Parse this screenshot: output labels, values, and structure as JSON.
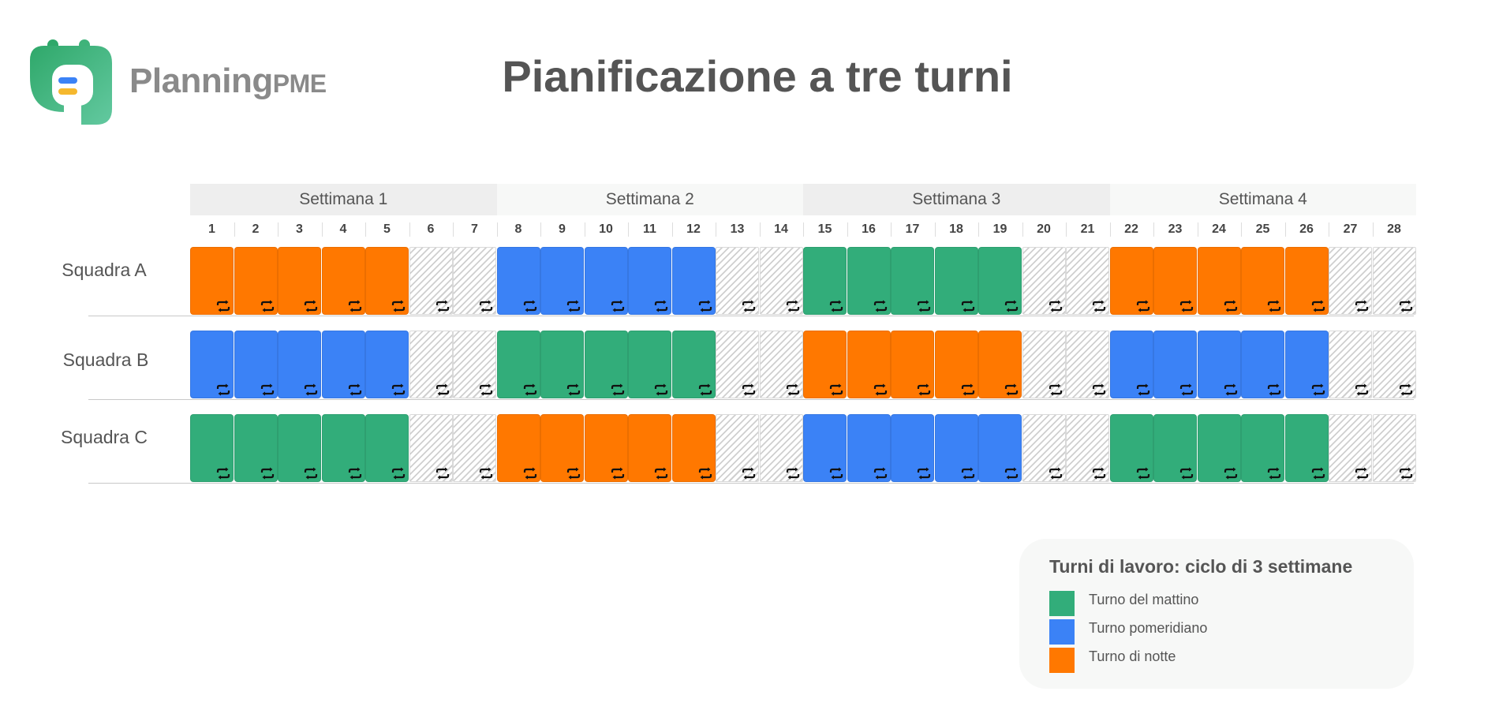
{
  "logo": {
    "brand": "Planning",
    "suffix": "PME"
  },
  "title": "Pianificazione a tre turni",
  "weeks": [
    {
      "label": "Settimana 1",
      "days": [
        1,
        2,
        3,
        4,
        5,
        6,
        7
      ]
    },
    {
      "label": "Settimana 2",
      "days": [
        8,
        9,
        10,
        11,
        12,
        13,
        14
      ]
    },
    {
      "label": "Settimana 3",
      "days": [
        15,
        16,
        17,
        18,
        19,
        20,
        21
      ]
    },
    {
      "label": "Settimana 4",
      "days": [
        22,
        23,
        24,
        25,
        26,
        27,
        28
      ]
    }
  ],
  "teams": [
    {
      "label": "Squadra A",
      "shifts": [
        "night",
        "day",
        "morning",
        "night"
      ]
    },
    {
      "label": "Squadra B",
      "shifts": [
        "day",
        "morning",
        "night",
        "day"
      ]
    },
    {
      "label": "Squadra C",
      "shifts": [
        "morning",
        "night",
        "day",
        "morning"
      ]
    }
  ],
  "workdays_per_week": 5,
  "shift_types": {
    "morning": {
      "label": "Turno del mattino",
      "color": "#32ad7a"
    },
    "day": {
      "label": "Turno pomeridiano",
      "color": "#3b82f6"
    },
    "night": {
      "label": "Turno di notte",
      "color": "#ff7800"
    }
  },
  "legend": {
    "title": "Turni di lavoro: ciclo di 3 settimane",
    "items": [
      {
        "shift": "morning",
        "label": "Turno del mattino"
      },
      {
        "shift": "day",
        "label": "Turno pomeridiano"
      },
      {
        "shift": "night",
        "label": "Turno di notte"
      }
    ]
  },
  "icons": {
    "cell": "repeat-icon",
    "logo": "calendar-logo-icon"
  }
}
